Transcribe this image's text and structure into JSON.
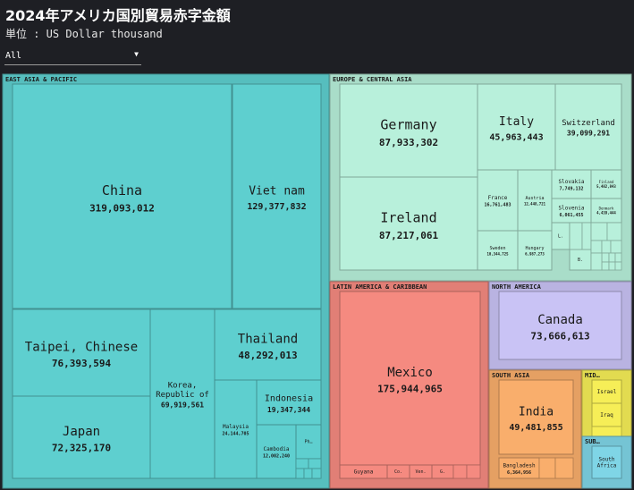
{
  "header": {
    "title": "2024年アメリカ国別貿易赤字金額",
    "unit": "単位 : US Dollar thousand"
  },
  "filter": {
    "selected": "All"
  },
  "chart_data": {
    "type": "treemap",
    "unit": "US Dollar thousand",
    "groups": [
      {
        "name": "EAST ASIA & PACIFIC",
        "color": "#5ecfcf",
        "items": [
          {
            "label": "China",
            "value": "319,093,012"
          },
          {
            "label": "Viet nam",
            "value": "129,377,832"
          },
          {
            "label": "Taipei, Chinese",
            "value": "76,393,594"
          },
          {
            "label": "Japan",
            "value": "72,325,170"
          },
          {
            "label": "Korea, Republic of",
            "value": "69,919,561"
          },
          {
            "label": "Thailand",
            "value": "48,292,013"
          },
          {
            "label": "Indonesia",
            "value": "19,347,344"
          },
          {
            "label": "Malaysia",
            "value": "24,144,705"
          },
          {
            "label": "Cambodia",
            "value": "12,002,240"
          },
          {
            "label": "Ph…",
            "value": ""
          }
        ]
      },
      {
        "name": "EUROPE & CENTRAL ASIA",
        "color": "#b8f0db",
        "items": [
          {
            "label": "Germany",
            "value": "87,933,302"
          },
          {
            "label": "Ireland",
            "value": "87,217,061"
          },
          {
            "label": "Italy",
            "value": "45,963,443"
          },
          {
            "label": "Switzerland",
            "value": "39,099,291"
          },
          {
            "label": "France",
            "value": "16,761,483"
          },
          {
            "label": "Austria",
            "value": "12,448,721"
          },
          {
            "label": "Slovakia",
            "value": "7,749,132"
          },
          {
            "label": "Finland",
            "value": "5,482,843"
          },
          {
            "label": "Slovenia",
            "value": "6,061,455"
          },
          {
            "label": "Denmark",
            "value": "4,439,444"
          },
          {
            "label": "Sweden",
            "value": "10,344,725"
          },
          {
            "label": "Hungary",
            "value": "6,987,273"
          },
          {
            "label": "L.",
            "value": ""
          },
          {
            "label": "B.",
            "value": ""
          }
        ]
      },
      {
        "name": "LATIN AMERICA & CARIBBEAN",
        "color": "#f58a80",
        "items": [
          {
            "label": "Mexico",
            "value": "175,944,965"
          },
          {
            "label": "Guyana",
            "value": ""
          },
          {
            "label": "Co.",
            "value": ""
          },
          {
            "label": "Ven.",
            "value": ""
          },
          {
            "label": "G.",
            "value": ""
          }
        ]
      },
      {
        "name": "NORTH AMERICA",
        "color": "#c9c3f5",
        "items": [
          {
            "label": "Canada",
            "value": "73,666,613"
          }
        ]
      },
      {
        "name": "SOUTH ASIA",
        "color": "#f9ae6c",
        "items": [
          {
            "label": "India",
            "value": "49,481,855"
          },
          {
            "label": "Bangladesh",
            "value": "6,364,956"
          }
        ]
      },
      {
        "name": "MID…",
        "color": "#f6ee57",
        "items": [
          {
            "label": "Israel",
            "value": ""
          },
          {
            "label": "Iraq",
            "value": ""
          }
        ]
      },
      {
        "name": "SUB…",
        "color": "#7fd5e6",
        "items": [
          {
            "label": "South Africa",
            "value": ""
          }
        ]
      }
    ]
  }
}
